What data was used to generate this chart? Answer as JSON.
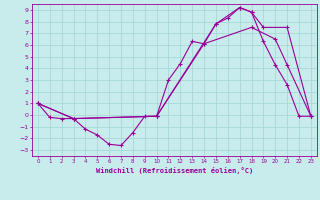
{
  "xlabel": "Windchill (Refroidissement éolien,°C)",
  "background_color": "#c8ecec",
  "grid_color": "#a8d8d8",
  "line_color": "#990099",
  "xlim": [
    -0.5,
    23.5
  ],
  "ylim": [
    -3.5,
    9.5
  ],
  "xticks": [
    0,
    1,
    2,
    3,
    4,
    5,
    6,
    7,
    8,
    9,
    10,
    11,
    12,
    13,
    14,
    15,
    16,
    17,
    18,
    19,
    20,
    21,
    22,
    23
  ],
  "yticks": [
    -3,
    -2,
    -1,
    0,
    1,
    2,
    3,
    4,
    5,
    6,
    7,
    8,
    9
  ],
  "line1_x": [
    0,
    1,
    2,
    3,
    4,
    5,
    6,
    7,
    8,
    9,
    10,
    11,
    12,
    13,
    14,
    15,
    16,
    17,
    18,
    19,
    20,
    21,
    22,
    23
  ],
  "line1_y": [
    1.0,
    -0.2,
    -0.3,
    -0.3,
    -1.2,
    -1.7,
    -2.5,
    -2.6,
    -1.5,
    -0.1,
    -0.1,
    3.0,
    4.4,
    6.3,
    6.1,
    7.8,
    8.3,
    9.2,
    8.8,
    6.3,
    4.3,
    2.6,
    -0.1,
    -0.1
  ],
  "line2_x": [
    0,
    3,
    10,
    15,
    17,
    18,
    19,
    21,
    23
  ],
  "line2_y": [
    1.0,
    -0.3,
    -0.1,
    7.8,
    9.2,
    8.8,
    7.5,
    7.5,
    -0.1
  ],
  "line3_x": [
    0,
    3,
    10,
    14,
    18,
    20,
    21,
    23
  ],
  "line3_y": [
    1.0,
    -0.3,
    -0.1,
    6.1,
    7.5,
    6.5,
    4.3,
    -0.1
  ]
}
